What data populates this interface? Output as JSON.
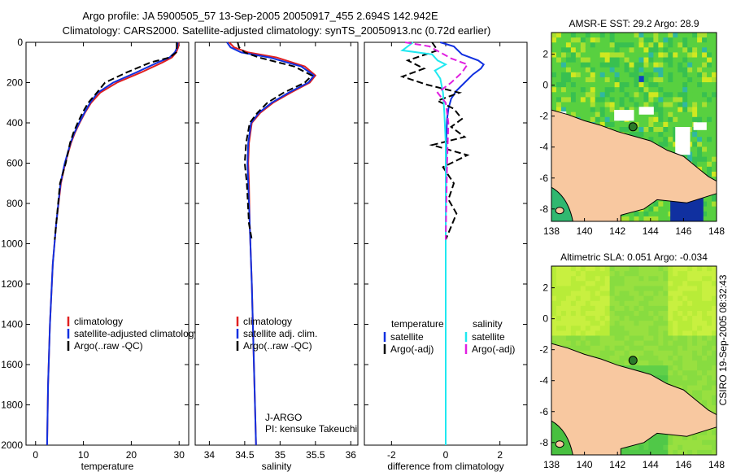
{
  "title": {
    "line1": "Argo profile: JA 5900505_57 13-Sep-2005 20050917_455 2.694S 142.942E",
    "line2": "Climatology: CARS2000. Satellite-adjusted climatology: synTS_20050913.nc (0.72d earlier)"
  },
  "side_label": "CSIRO 19-Sep-2005 08:32:43",
  "colors": {
    "climatology": "#e02020",
    "satellite": "#1030e0",
    "argo": "#000000",
    "sal_satellite": "#20e8f0",
    "sal_argo": "#e020e0",
    "land": "#f8c8a0",
    "coast": "#000000",
    "marker": "#2a7a2a"
  },
  "chart_data": [
    {
      "id": "temperature",
      "type": "line",
      "xlabel": "temperature",
      "ylabel": "",
      "xlim": [
        -2,
        32
      ],
      "ylim": [
        2000,
        0
      ],
      "xticks": [
        0,
        10,
        20,
        30
      ],
      "yticks": [
        0,
        200,
        400,
        600,
        800,
        1000,
        1200,
        1400,
        1600,
        1800,
        2000
      ],
      "y_inverted": true,
      "legend": {
        "position": "lower-right",
        "entries": [
          "climatology",
          "satellite-adjusted climatology",
          "Argo(..raw -QC)"
        ]
      },
      "series": [
        {
          "name": "climatology",
          "color_key": "climatology",
          "dash": "solid",
          "x": [
            29.9,
            29.8,
            29.4,
            28.5,
            26.5,
            22.0,
            17.0,
            13.5,
            11.6,
            10.3,
            9.2,
            8.2,
            7.4,
            6.2,
            5.3,
            4.3,
            3.6,
            3.0,
            2.6,
            2.4
          ],
          "y": [
            0,
            25,
            50,
            75,
            100,
            150,
            200,
            250,
            300,
            350,
            400,
            450,
            500,
            600,
            700,
            900,
            1100,
            1400,
            1700,
            2000
          ]
        },
        {
          "name": "satellite-adjusted climatology",
          "color_key": "satellite",
          "dash": "solid",
          "x": [
            29.7,
            29.6,
            29.1,
            28.0,
            25.5,
            21.0,
            16.2,
            13.0,
            11.4,
            10.2,
            9.1,
            8.1,
            7.3,
            6.1,
            5.2,
            4.3,
            3.6,
            3.0,
            2.6,
            2.4
          ],
          "y": [
            0,
            25,
            50,
            75,
            100,
            150,
            200,
            250,
            300,
            350,
            400,
            450,
            500,
            600,
            700,
            900,
            1100,
            1400,
            1700,
            2000
          ]
        },
        {
          "name": "Argo(..raw -QC)",
          "color_key": "argo",
          "dash": "dashed",
          "x": [
            29.5,
            29.5,
            29.4,
            28.0,
            24.0,
            19.0,
            14.5,
            12.8,
            11.0,
            9.8,
            8.8,
            7.9,
            7.2,
            6.3,
            5.1,
            4.0
          ],
          "y": [
            0,
            25,
            50,
            75,
            100,
            150,
            200,
            250,
            300,
            350,
            400,
            450,
            500,
            600,
            700,
            980
          ]
        }
      ]
    },
    {
      "id": "salinity",
      "type": "line",
      "xlabel": "salinity",
      "ylabel": "",
      "xlim": [
        33.8,
        36.1
      ],
      "ylim": [
        2000,
        0
      ],
      "xticks": [
        34,
        34.5,
        35,
        35.5,
        36
      ],
      "y_inverted": true,
      "legend": {
        "position": "lower-right",
        "entries": [
          "climatology",
          "satellite adj. clim.",
          "Argo(..raw -QC)"
        ]
      },
      "annotation": [
        "J-ARGO",
        "PI: kensuke Takeuchi"
      ],
      "series": [
        {
          "name": "climatology",
          "color_key": "climatology",
          "dash": "solid",
          "x": [
            34.28,
            34.35,
            34.55,
            34.95,
            35.35,
            35.5,
            35.42,
            35.15,
            34.9,
            34.72,
            34.6,
            34.56,
            34.55,
            34.56,
            34.57,
            34.6,
            34.63,
            34.66
          ],
          "y": [
            0,
            25,
            50,
            75,
            120,
            165,
            200,
            250,
            300,
            350,
            400,
            500,
            600,
            700,
            900,
            1200,
            1600,
            2000
          ]
        },
        {
          "name": "satellite adj. clim.",
          "color_key": "satellite",
          "dash": "solid",
          "x": [
            34.25,
            34.3,
            34.45,
            34.85,
            35.3,
            35.48,
            35.4,
            35.12,
            34.88,
            34.7,
            34.59,
            34.55,
            34.54,
            34.55,
            34.57,
            34.6,
            34.63,
            34.66
          ],
          "y": [
            0,
            25,
            50,
            75,
            120,
            165,
            200,
            250,
            300,
            350,
            400,
            500,
            600,
            700,
            900,
            1200,
            1600,
            2000
          ]
        },
        {
          "name": "Argo(..raw -QC)",
          "color_key": "argo",
          "dash": "dashed",
          "x": [
            34.4,
            34.42,
            34.5,
            34.7,
            35.2,
            35.45,
            35.35,
            35.05,
            34.82,
            34.68,
            34.57,
            34.52,
            34.5,
            34.53,
            34.56,
            34.6
          ],
          "y": [
            0,
            25,
            50,
            75,
            120,
            165,
            200,
            250,
            300,
            350,
            400,
            500,
            600,
            700,
            900,
            980
          ]
        }
      ]
    },
    {
      "id": "difference",
      "type": "line",
      "xlabel": "difference from climatology",
      "ylabel": "",
      "xlim": [
        -3,
        3
      ],
      "ylim": [
        2000,
        0
      ],
      "xticks": [
        -2,
        0,
        2
      ],
      "y_inverted": true,
      "legend": {
        "position": "lower-right",
        "groups": [
          {
            "heading": "temperature",
            "entries": [
              "satellite",
              "Argo(-adj)"
            ]
          },
          {
            "heading": "salinity",
            "entries": [
              "satellite",
              "Argo(-adj)"
            ]
          }
        ]
      },
      "series": [
        {
          "name": "temperature satellite",
          "color_key": "satellite",
          "dash": "solid",
          "x": [
            -0.2,
            0.3,
            0.6,
            1.2,
            1.4,
            1.3,
            1.0,
            0.7,
            0.4,
            0.2,
            0.1,
            0.05,
            0.03,
            0.02,
            0.01,
            0.0,
            0.0
          ],
          "y": [
            0,
            20,
            60,
            90,
            110,
            130,
            160,
            200,
            240,
            280,
            330,
            380,
            450,
            550,
            700,
            1000,
            2000
          ]
        },
        {
          "name": "temperature Argo(-adj)",
          "color_key": "argo",
          "dash": "dashed",
          "x": [
            -0.5,
            -0.3,
            -1.4,
            -0.8,
            -1.6,
            -0.7,
            0.5,
            -0.3,
            0.3,
            0.6,
            0.2,
            0.7,
            -0.5,
            0.8,
            -0.1,
            0.3,
            0.1,
            0.4,
            0.0
          ],
          "y": [
            0,
            40,
            90,
            130,
            170,
            210,
            250,
            290,
            330,
            380,
            420,
            470,
            510,
            560,
            620,
            700,
            780,
            850,
            980
          ]
        },
        {
          "name": "salinity satellite",
          "color_key": "sal_satellite",
          "dash": "solid",
          "x": [
            -1.2,
            -1.6,
            -0.5,
            -0.3,
            0.0,
            -0.4,
            -0.2,
            -0.1,
            -0.05,
            0.0,
            0.0,
            0.0
          ],
          "y": [
            0,
            40,
            60,
            90,
            110,
            140,
            180,
            250,
            350,
            500,
            1000,
            2000
          ]
        },
        {
          "name": "salinity Argo(-adj)",
          "color_key": "sal_argo",
          "dash": "dashed",
          "x": [
            -1.5,
            -0.6,
            -0.2,
            0.2,
            0.8,
            0.6,
            0.2,
            -0.3,
            0.0,
            0.1,
            0.05,
            0.0
          ],
          "y": [
            0,
            20,
            50,
            80,
            110,
            150,
            200,
            250,
            300,
            400,
            600,
            980
          ]
        }
      ]
    },
    {
      "id": "sst_map",
      "type": "heatmap",
      "title": "AMSR-E SST: 29.2 Argo: 28.9",
      "xlim": [
        138,
        148
      ],
      "ylim": [
        -8.8,
        3.4
      ],
      "xticks": [
        138,
        140,
        142,
        144,
        146,
        148
      ],
      "yticks": [
        2,
        0,
        -2,
        -4,
        -6,
        -8
      ],
      "marker": {
        "lon": 142.94,
        "lat": -2.69
      }
    },
    {
      "id": "sla_map",
      "type": "heatmap",
      "title": "Altimetric SLA: 0.051 Argo: -0.034",
      "xlim": [
        138,
        148
      ],
      "ylim": [
        -8.8,
        3.4
      ],
      "xticks": [
        138,
        140,
        142,
        144,
        146,
        148
      ],
      "yticks": [
        2,
        0,
        -2,
        -4,
        -6,
        -8
      ],
      "marker": {
        "lon": 142.94,
        "lat": -2.69
      }
    }
  ]
}
